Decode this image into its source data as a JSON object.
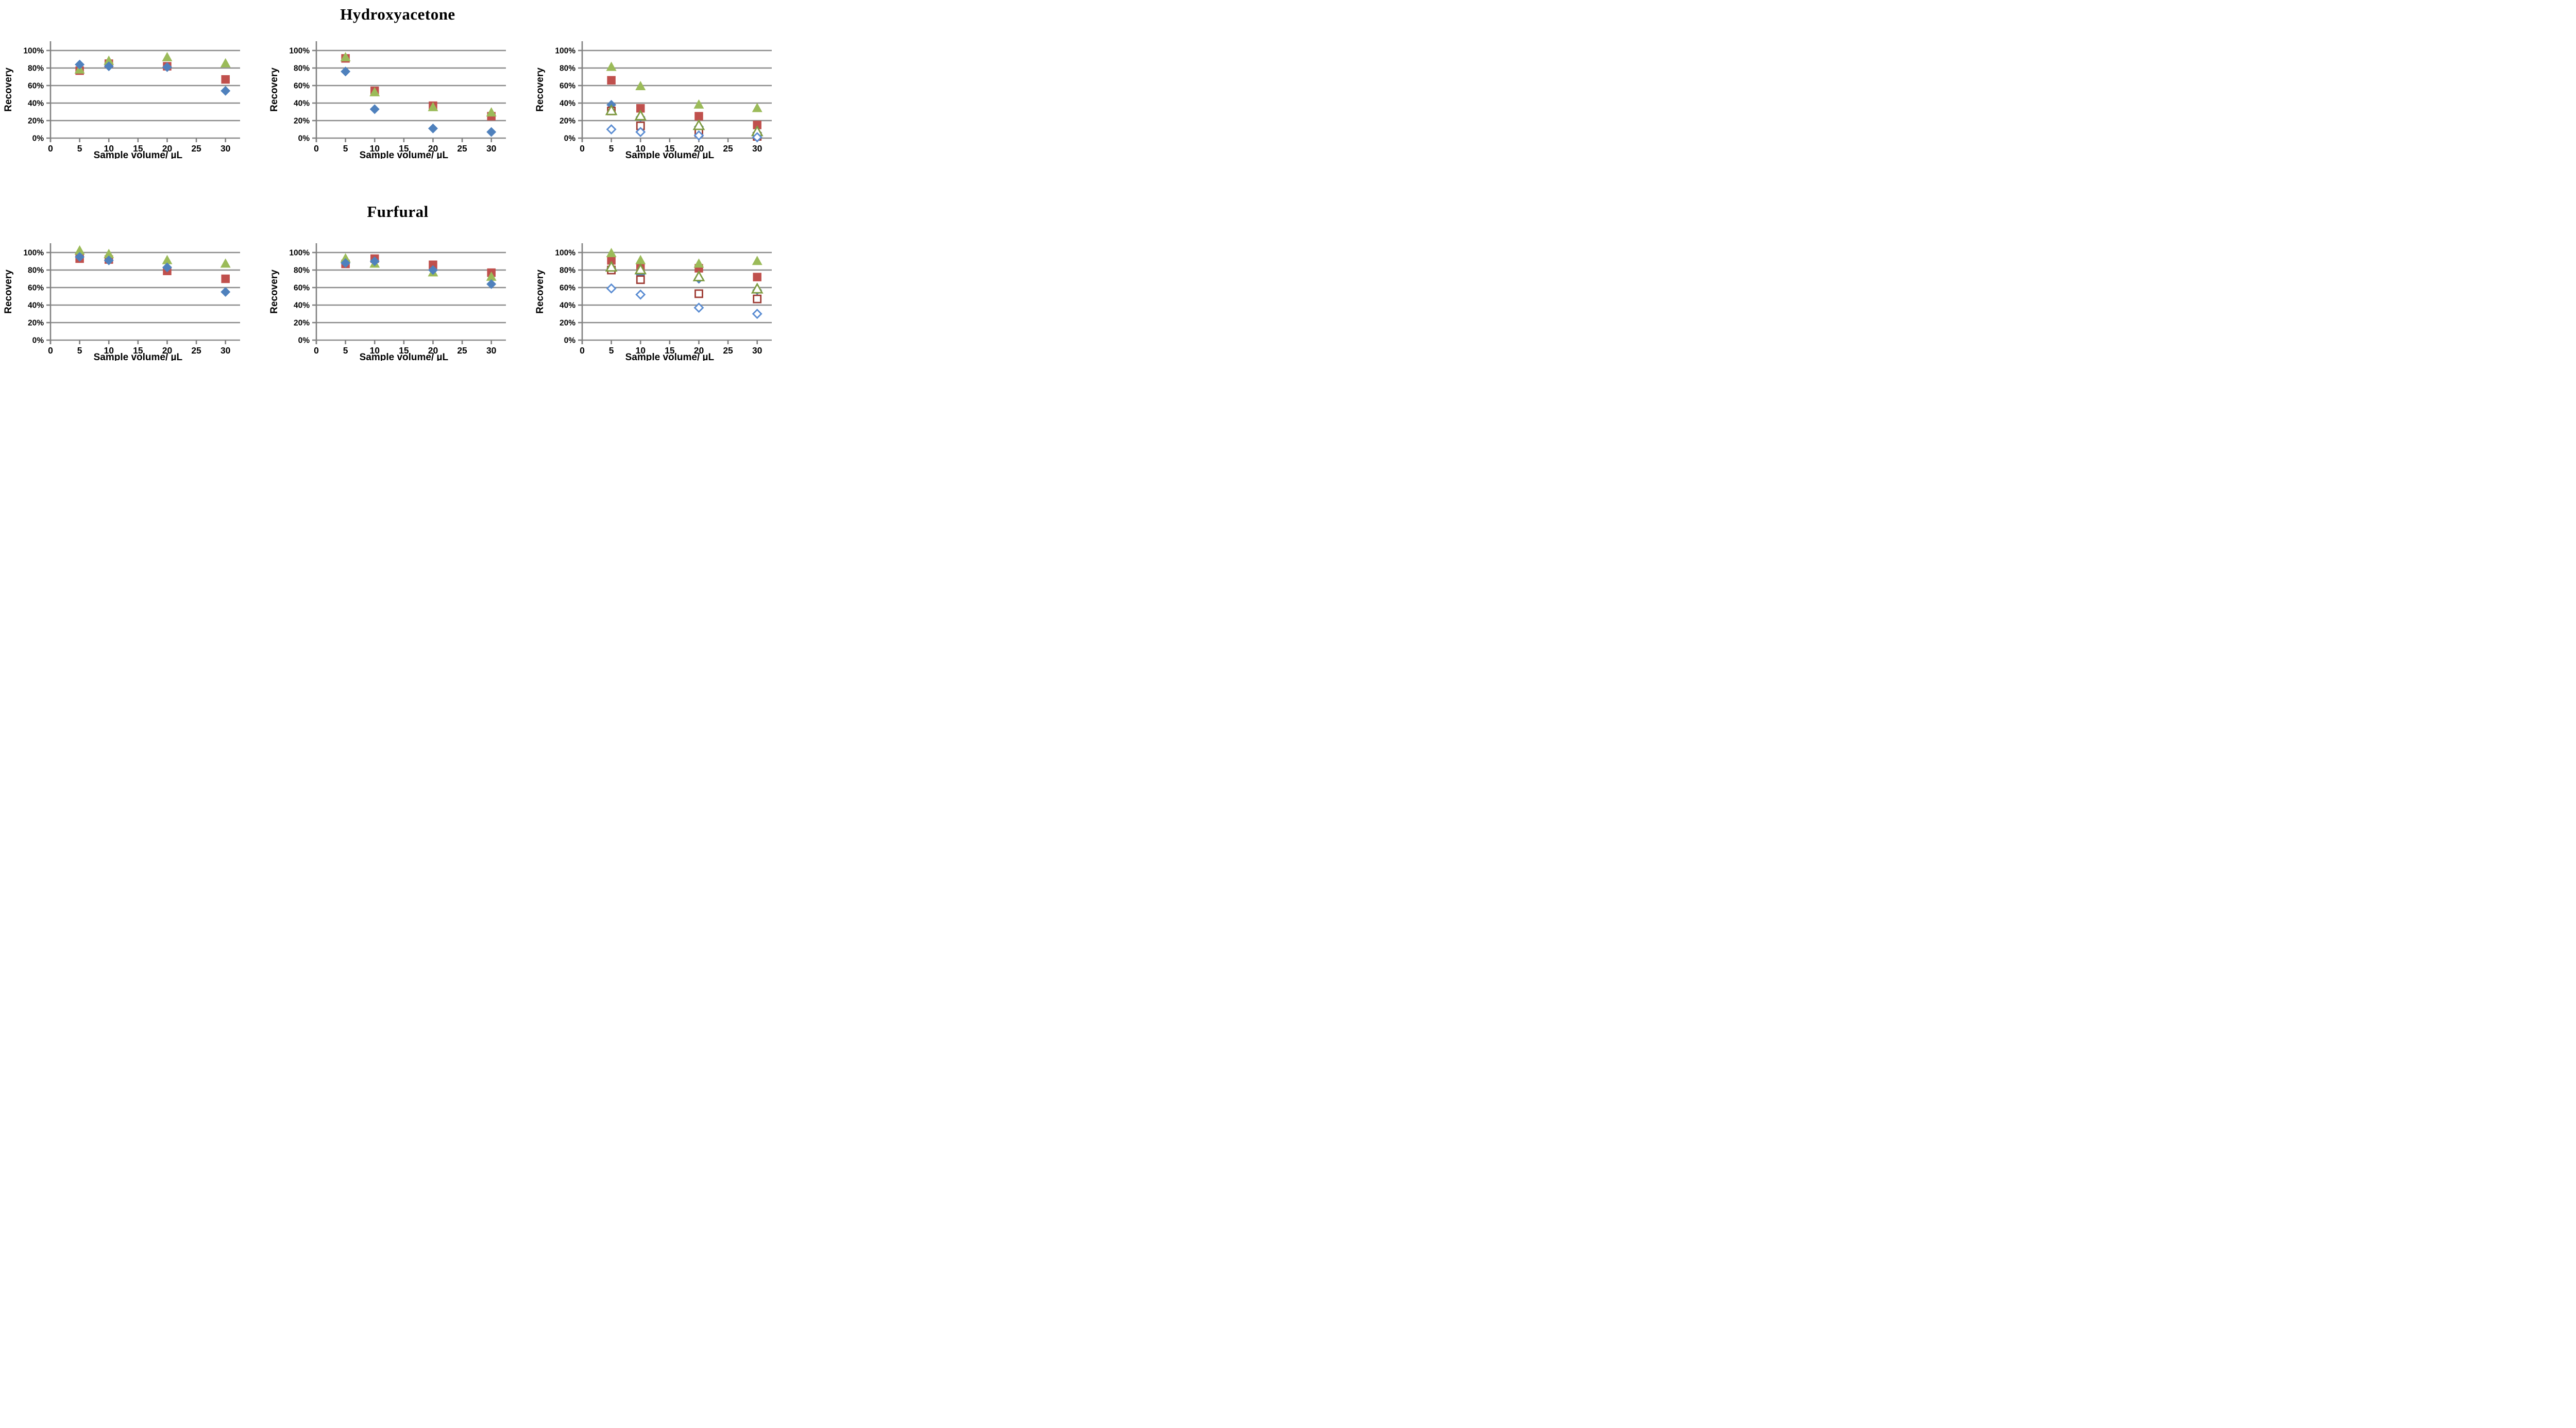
{
  "titles": {
    "row1": "Hydroxyacetone",
    "row2": "Furfural"
  },
  "axes": {
    "xlabel": "Sample volume/ µL",
    "ylabel": "Recovery",
    "x_ticks": [
      0,
      5,
      10,
      15,
      20,
      25,
      30
    ],
    "y_ticks": [
      "0%",
      "20%",
      "40%",
      "60%",
      "80%",
      "100%"
    ],
    "y_tick_values": [
      0,
      20,
      40,
      60,
      80,
      100
    ],
    "xlim": [
      0,
      32.5
    ],
    "ylim_percent": [
      0,
      100
    ],
    "grid": "horizontal"
  },
  "colors": {
    "filled_blue": "#4F81BD",
    "filled_red": "#C0504D",
    "filled_green": "#9BBB59",
    "open_blue": "#5A8CD2",
    "open_red": "#9E3B33",
    "open_green": "#7E9C42",
    "open_fill": "#FFFFFF",
    "gridline": "#8C8C8C",
    "axis": "#808080",
    "text": "#000000"
  },
  "chart_data": [
    {
      "id": "hydroxyacetone-left",
      "type": "scatter",
      "title": "Hydroxyacetone",
      "xlabel": "Sample volume/ µL",
      "ylabel": "Recovery",
      "x": [
        5,
        10,
        20,
        30
      ],
      "series": [
        {
          "name": "red-square",
          "marker": "square",
          "variant": "filled",
          "color_key": "filled_red",
          "values": [
            77,
            85,
            82,
            67
          ]
        },
        {
          "name": "green-triangle",
          "marker": "triangle",
          "variant": "filled",
          "color_key": "filled_green",
          "values": [
            79,
            89,
            93,
            86
          ]
        },
        {
          "name": "blue-diamond",
          "marker": "diamond",
          "variant": "filled",
          "color_key": "filled_blue",
          "values": [
            84,
            82,
            81,
            54
          ]
        }
      ]
    },
    {
      "id": "hydroxyacetone-middle",
      "type": "scatter",
      "title": "Hydroxyacetone",
      "xlabel": "Sample volume/ µL",
      "ylabel": "Recovery",
      "x": [
        5,
        10,
        20,
        30
      ],
      "series": [
        {
          "name": "red-square",
          "marker": "square",
          "variant": "filled",
          "color_key": "filled_red",
          "values": [
            91,
            54,
            37,
            25
          ]
        },
        {
          "name": "green-triangle",
          "marker": "triangle",
          "variant": "filled",
          "color_key": "filled_green",
          "values": [
            93,
            53,
            36,
            30
          ]
        },
        {
          "name": "blue-diamond",
          "marker": "diamond",
          "variant": "filled",
          "color_key": "filled_blue",
          "values": [
            76,
            33,
            11,
            7
          ]
        }
      ]
    },
    {
      "id": "hydroxyacetone-right",
      "type": "scatter",
      "title": "Hydroxyacetone",
      "xlabel": "Sample volume/ µL",
      "ylabel": "Recovery",
      "x": [
        5,
        10,
        20,
        30
      ],
      "series": [
        {
          "name": "red-square",
          "marker": "square",
          "variant": "filled",
          "color_key": "filled_red",
          "values": [
            66,
            34,
            25,
            15
          ]
        },
        {
          "name": "green-triangle",
          "marker": "triangle",
          "variant": "filled",
          "color_key": "filled_green",
          "values": [
            82,
            60,
            39,
            35
          ]
        },
        {
          "name": "blue-diamond",
          "marker": "diamond",
          "variant": "filled",
          "color_key": "filled_blue",
          "values": [
            38,
            24,
            13,
            6
          ]
        },
        {
          "name": "red-square-open",
          "marker": "square",
          "variant": "open",
          "color_key": "open_red",
          "values": [
            31,
            14,
            6,
            2
          ]
        },
        {
          "name": "green-triangle-open",
          "marker": "triangle",
          "variant": "open",
          "color_key": "open_green",
          "values": [
            32,
            26,
            15,
            8
          ]
        },
        {
          "name": "blue-diamond-open",
          "marker": "diamond",
          "variant": "open",
          "color_key": "open_blue",
          "values": [
            10,
            7,
            3,
            1
          ]
        }
      ]
    },
    {
      "id": "furfural-left",
      "type": "scatter",
      "title": "Furfural",
      "xlabel": "Sample volume/ µL",
      "ylabel": "Recovery",
      "x": [
        5,
        10,
        20,
        30
      ],
      "series": [
        {
          "name": "red-square",
          "marker": "square",
          "variant": "filled",
          "color_key": "filled_red",
          "values": [
            93,
            92,
            79,
            70
          ]
        },
        {
          "name": "green-triangle",
          "marker": "triangle",
          "variant": "filled",
          "color_key": "filled_green",
          "values": [
            103,
            99,
            92,
            88
          ]
        },
        {
          "name": "blue-diamond",
          "marker": "diamond",
          "variant": "filled",
          "color_key": "filled_blue",
          "values": [
            95,
            91,
            83,
            55
          ]
        }
      ]
    },
    {
      "id": "furfural-middle",
      "type": "scatter",
      "title": "Furfural",
      "xlabel": "Sample volume/ µL",
      "ylabel": "Recovery",
      "x": [
        5,
        10,
        20,
        30
      ],
      "series": [
        {
          "name": "red-square",
          "marker": "square",
          "variant": "filled",
          "color_key": "filled_red",
          "values": [
            87,
            93,
            86,
            77
          ]
        },
        {
          "name": "green-triangle",
          "marker": "triangle",
          "variant": "filled",
          "color_key": "filled_green",
          "values": [
            94,
            88,
            78,
            73
          ]
        },
        {
          "name": "blue-diamond",
          "marker": "diamond",
          "variant": "filled",
          "color_key": "filled_blue",
          "values": [
            88,
            90,
            80,
            64
          ]
        }
      ]
    },
    {
      "id": "furfural-right",
      "type": "scatter",
      "title": "Furfural",
      "xlabel": "Sample volume/ µL",
      "ylabel": "Recovery",
      "x": [
        5,
        10,
        20,
        30
      ],
      "series": [
        {
          "name": "red-square",
          "marker": "square",
          "variant": "filled",
          "color_key": "filled_red",
          "values": [
            91,
            82,
            82,
            72
          ]
        },
        {
          "name": "green-triangle",
          "marker": "triangle",
          "variant": "filled",
          "color_key": "filled_green",
          "values": [
            100,
            92,
            88,
            91
          ]
        },
        {
          "name": "blue-diamond",
          "marker": "diamond",
          "variant": "filled",
          "color_key": "filled_blue",
          "values": [
            82,
            75,
            70,
            57
          ]
        },
        {
          "name": "red-square-open",
          "marker": "square",
          "variant": "open",
          "color_key": "open_red",
          "values": [
            80,
            69,
            53,
            47
          ]
        },
        {
          "name": "green-triangle-open",
          "marker": "triangle",
          "variant": "open",
          "color_key": "open_green",
          "values": [
            84,
            81,
            73,
            59
          ]
        },
        {
          "name": "blue-diamond-open",
          "marker": "diamond",
          "variant": "open",
          "color_key": "open_blue",
          "values": [
            59,
            52,
            37,
            30
          ]
        }
      ]
    }
  ]
}
